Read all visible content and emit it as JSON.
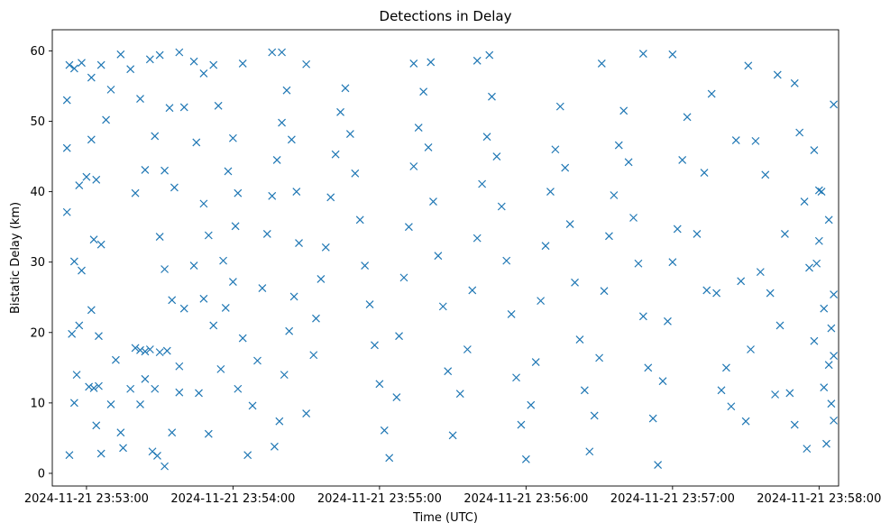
{
  "chart_data": {
    "type": "scatter",
    "title": "Detections in Delay",
    "xlabel": "Time (UTC)",
    "ylabel": "Bistatic Delay (km)",
    "x_ticks": [
      "2024-11-21 23:53:00",
      "2024-11-21 23:54:00",
      "2024-11-21 23:55:00",
      "2024-11-21 23:56:00",
      "2024-11-21 23:57:00",
      "2024-11-21 23:58:00"
    ],
    "y_ticks": [
      "0",
      "10",
      "20",
      "30",
      "40",
      "50",
      "60"
    ],
    "xlim": [
      "2024-11-21 23:52:46",
      "2024-11-21 23:58:08"
    ],
    "ylim": [
      -1.8,
      63.0
    ],
    "marker": "x",
    "color": "#1f77b4",
    "grid": false,
    "series": [
      {
        "points": [
          [
            "2024-11-21 23:52:53",
            58.0
          ],
          [
            "2024-11-21 23:52:55",
            57.5
          ],
          [
            "2024-11-21 23:52:58",
            58.3
          ],
          [
            "2024-11-21 23:53:02",
            56.2
          ],
          [
            "2024-11-21 23:53:06",
            58.0
          ],
          [
            "2024-11-21 23:53:10",
            54.5
          ],
          [
            "2024-11-21 23:53:14",
            59.5
          ],
          [
            "2024-11-21 23:53:18",
            57.4
          ],
          [
            "2024-11-21 23:53:22",
            53.2
          ],
          [
            "2024-11-21 23:53:26",
            58.8
          ],
          [
            "2024-11-21 23:53:30",
            59.4
          ],
          [
            "2024-11-21 23:53:34",
            51.9
          ],
          [
            "2024-11-21 23:53:38",
            59.8
          ],
          [
            "2024-11-21 23:53:44",
            58.5
          ],
          [
            "2024-11-21 23:53:48",
            56.8
          ],
          [
            "2024-11-21 23:53:52",
            58.0
          ],
          [
            "2024-11-21 23:54:04",
            58.2
          ],
          [
            "2024-11-21 23:54:16",
            59.8
          ],
          [
            "2024-11-21 23:54:20",
            59.8
          ],
          [
            "2024-11-21 23:54:30",
            58.1
          ],
          [
            "2024-11-21 23:55:14",
            58.2
          ],
          [
            "2024-11-21 23:55:21",
            58.4
          ],
          [
            "2024-11-21 23:55:45",
            59.4
          ],
          [
            "2024-11-21 23:55:40",
            58.6
          ],
          [
            "2024-11-21 23:56:31",
            58.2
          ],
          [
            "2024-11-21 23:56:48",
            59.6
          ],
          [
            "2024-11-21 23:57:00",
            59.5
          ],
          [
            "2024-11-21 23:57:31",
            57.9
          ],
          [
            "2024-11-21 23:57:43",
            56.6
          ],
          [
            "2024-11-21 23:57:50",
            55.4
          ],
          [
            "2024-11-21 23:52:52",
            53.0
          ],
          [
            "2024-11-21 23:52:52",
            46.2
          ],
          [
            "2024-11-21 23:52:52",
            37.1
          ],
          [
            "2024-11-21 23:52:55",
            30.1
          ],
          [
            "2024-11-21 23:52:58",
            28.8
          ],
          [
            "2024-11-21 23:52:54",
            19.8
          ],
          [
            "2024-11-21 23:52:56",
            14.0
          ],
          [
            "2024-11-21 23:52:55",
            10.0
          ],
          [
            "2024-11-21 23:52:53",
            2.6
          ],
          [
            "2024-11-21 23:52:57",
            21.0
          ],
          [
            "2024-11-21 23:52:57",
            40.9
          ],
          [
            "2024-11-21 23:53:00",
            42.1
          ],
          [
            "2024-11-21 23:53:02",
            47.4
          ],
          [
            "2024-11-21 23:53:04",
            41.7
          ],
          [
            "2024-11-21 23:53:08",
            50.2
          ],
          [
            "2024-11-21 23:53:03",
            33.2
          ],
          [
            "2024-11-21 23:53:06",
            32.5
          ],
          [
            "2024-11-21 23:53:02",
            23.2
          ],
          [
            "2024-11-21 23:53:05",
            19.5
          ],
          [
            "2024-11-21 23:53:01",
            12.3
          ],
          [
            "2024-11-21 23:53:03",
            12.1
          ],
          [
            "2024-11-21 23:53:05",
            12.4
          ],
          [
            "2024-11-21 23:53:04",
            6.8
          ],
          [
            "2024-11-21 23:53:06",
            2.8
          ],
          [
            "2024-11-21 23:53:10",
            9.8
          ],
          [
            "2024-11-21 23:53:12",
            16.1
          ],
          [
            "2024-11-21 23:53:14",
            5.8
          ],
          [
            "2024-11-21 23:53:15",
            3.6
          ],
          [
            "2024-11-21 23:53:18",
            12.0
          ],
          [
            "2024-11-21 23:53:20",
            17.8
          ],
          [
            "2024-11-21 23:53:22",
            17.5
          ],
          [
            "2024-11-21 23:53:24",
            17.3
          ],
          [
            "2024-11-21 23:53:26",
            17.6
          ],
          [
            "2024-11-21 23:53:30",
            17.2
          ],
          [
            "2024-11-21 23:53:33",
            17.4
          ],
          [
            "2024-11-21 23:53:28",
            12.0
          ],
          [
            "2024-11-21 23:53:24",
            13.4
          ],
          [
            "2024-11-21 23:53:22",
            9.8
          ],
          [
            "2024-11-21 23:53:27",
            3.1
          ],
          [
            "2024-11-21 23:53:29",
            2.5
          ],
          [
            "2024-11-21 23:53:32",
            1.0
          ],
          [
            "2024-11-21 23:53:35",
            5.8
          ],
          [
            "2024-11-21 23:53:38",
            11.5
          ],
          [
            "2024-11-21 23:53:38",
            15.2
          ],
          [
            "2024-11-21 23:53:40",
            23.4
          ],
          [
            "2024-11-21 23:53:35",
            24.6
          ],
          [
            "2024-11-21 23:53:32",
            29.0
          ],
          [
            "2024-11-21 23:53:30",
            33.6
          ],
          [
            "2024-11-21 23:53:20",
            39.8
          ],
          [
            "2024-11-21 23:53:24",
            43.1
          ],
          [
            "2024-11-21 23:53:28",
            47.9
          ],
          [
            "2024-11-21 23:53:32",
            43.0
          ],
          [
            "2024-11-21 23:53:36",
            40.6
          ],
          [
            "2024-11-21 23:53:40",
            52.0
          ],
          [
            "2024-11-21 23:53:45",
            47.0
          ],
          [
            "2024-11-21 23:53:48",
            38.3
          ],
          [
            "2024-11-21 23:53:50",
            33.8
          ],
          [
            "2024-11-21 23:53:44",
            29.5
          ],
          [
            "2024-11-21 23:53:48",
            24.8
          ],
          [
            "2024-11-21 23:53:52",
            21.0
          ],
          [
            "2024-11-21 23:53:46",
            11.4
          ],
          [
            "2024-11-21 23:53:50",
            5.6
          ],
          [
            "2024-11-21 23:53:55",
            14.8
          ],
          [
            "2024-11-21 23:53:57",
            23.5
          ],
          [
            "2024-11-21 23:53:56",
            30.2
          ],
          [
            "2024-11-21 23:53:58",
            42.9
          ],
          [
            "2024-11-21 23:53:54",
            52.2
          ],
          [
            "2024-11-21 23:54:00",
            47.6
          ],
          [
            "2024-11-21 23:54:02",
            39.8
          ],
          [
            "2024-11-21 23:54:01",
            35.1
          ],
          [
            "2024-11-21 23:54:00",
            27.2
          ],
          [
            "2024-11-21 23:54:04",
            19.2
          ],
          [
            "2024-11-21 23:54:02",
            12.0
          ],
          [
            "2024-11-21 23:54:06",
            2.6
          ],
          [
            "2024-11-21 23:54:08",
            9.6
          ],
          [
            "2024-11-21 23:54:10",
            16.0
          ],
          [
            "2024-11-21 23:54:12",
            26.3
          ],
          [
            "2024-11-21 23:54:14",
            34.0
          ],
          [
            "2024-11-21 23:54:16",
            39.4
          ],
          [
            "2024-11-21 23:54:18",
            44.5
          ],
          [
            "2024-11-21 23:54:20",
            49.8
          ],
          [
            "2024-11-21 23:54:22",
            54.4
          ],
          [
            "2024-11-21 23:54:24",
            47.4
          ],
          [
            "2024-11-21 23:54:26",
            40.0
          ],
          [
            "2024-11-21 23:54:27",
            32.7
          ],
          [
            "2024-11-21 23:54:25",
            25.1
          ],
          [
            "2024-11-21 23:54:23",
            20.2
          ],
          [
            "2024-11-21 23:54:21",
            14.0
          ],
          [
            "2024-11-21 23:54:19",
            7.4
          ],
          [
            "2024-11-21 23:54:17",
            3.8
          ],
          [
            "2024-11-21 23:54:30",
            8.5
          ],
          [
            "2024-11-21 23:54:33",
            16.8
          ],
          [
            "2024-11-21 23:54:34",
            22.0
          ],
          [
            "2024-11-21 23:54:36",
            27.6
          ],
          [
            "2024-11-21 23:54:38",
            32.1
          ],
          [
            "2024-11-21 23:54:40",
            39.2
          ],
          [
            "2024-11-21 23:54:42",
            45.3
          ],
          [
            "2024-11-21 23:54:44",
            51.3
          ],
          [
            "2024-11-21 23:54:46",
            54.7
          ],
          [
            "2024-11-21 23:54:48",
            48.2
          ],
          [
            "2024-11-21 23:54:50",
            42.6
          ],
          [
            "2024-11-21 23:54:52",
            36.0
          ],
          [
            "2024-11-21 23:54:54",
            29.5
          ],
          [
            "2024-11-21 23:54:56",
            24.0
          ],
          [
            "2024-11-21 23:54:58",
            18.2
          ],
          [
            "2024-11-21 23:55:00",
            12.7
          ],
          [
            "2024-11-21 23:55:02",
            6.1
          ],
          [
            "2024-11-21 23:55:04",
            2.2
          ],
          [
            "2024-11-21 23:55:07",
            10.8
          ],
          [
            "2024-11-21 23:55:08",
            19.5
          ],
          [
            "2024-11-21 23:55:10",
            27.8
          ],
          [
            "2024-11-21 23:55:12",
            35.0
          ],
          [
            "2024-11-21 23:55:14",
            43.6
          ],
          [
            "2024-11-21 23:55:16",
            49.1
          ],
          [
            "2024-11-21 23:55:18",
            54.2
          ],
          [
            "2024-11-21 23:55:20",
            46.3
          ],
          [
            "2024-11-21 23:55:22",
            38.6
          ],
          [
            "2024-11-21 23:55:24",
            30.9
          ],
          [
            "2024-11-21 23:55:26",
            23.7
          ],
          [
            "2024-11-21 23:55:28",
            14.5
          ],
          [
            "2024-11-21 23:55:30",
            5.4
          ],
          [
            "2024-11-21 23:55:33",
            11.3
          ],
          [
            "2024-11-21 23:55:36",
            17.6
          ],
          [
            "2024-11-21 23:55:38",
            26.0
          ],
          [
            "2024-11-21 23:55:40",
            33.4
          ],
          [
            "2024-11-21 23:55:42",
            41.1
          ],
          [
            "2024-11-21 23:55:44",
            47.8
          ],
          [
            "2024-11-21 23:55:46",
            53.5
          ],
          [
            "2024-11-21 23:55:48",
            45.0
          ],
          [
            "2024-11-21 23:55:50",
            37.9
          ],
          [
            "2024-11-21 23:55:52",
            30.2
          ],
          [
            "2024-11-21 23:55:54",
            22.6
          ],
          [
            "2024-11-21 23:55:56",
            13.6
          ],
          [
            "2024-11-21 23:55:58",
            6.9
          ],
          [
            "2024-11-21 23:56:00",
            2.0
          ],
          [
            "2024-11-21 23:56:02",
            9.7
          ],
          [
            "2024-11-21 23:56:04",
            15.8
          ],
          [
            "2024-11-21 23:56:06",
            24.5
          ],
          [
            "2024-11-21 23:56:08",
            32.3
          ],
          [
            "2024-11-21 23:56:10",
            40.0
          ],
          [
            "2024-11-21 23:56:12",
            46.0
          ],
          [
            "2024-11-21 23:56:14",
            52.1
          ],
          [
            "2024-11-21 23:56:16",
            43.4
          ],
          [
            "2024-11-21 23:56:18",
            35.4
          ],
          [
            "2024-11-21 23:56:20",
            27.1
          ],
          [
            "2024-11-21 23:56:22",
            19.0
          ],
          [
            "2024-11-21 23:56:24",
            11.8
          ],
          [
            "2024-11-21 23:56:26",
            3.1
          ],
          [
            "2024-11-21 23:56:28",
            8.2
          ],
          [
            "2024-11-21 23:56:30",
            16.4
          ],
          [
            "2024-11-21 23:56:32",
            25.9
          ],
          [
            "2024-11-21 23:56:34",
            33.7
          ],
          [
            "2024-11-21 23:56:36",
            39.5
          ],
          [
            "2024-11-21 23:56:38",
            46.6
          ],
          [
            "2024-11-21 23:56:40",
            51.5
          ],
          [
            "2024-11-21 23:56:42",
            44.2
          ],
          [
            "2024-11-21 23:56:44",
            36.3
          ],
          [
            "2024-11-21 23:56:46",
            29.8
          ],
          [
            "2024-11-21 23:56:48",
            22.3
          ],
          [
            "2024-11-21 23:56:50",
            15.0
          ],
          [
            "2024-11-21 23:56:52",
            7.8
          ],
          [
            "2024-11-21 23:56:54",
            1.2
          ],
          [
            "2024-11-21 23:56:56",
            13.1
          ],
          [
            "2024-11-21 23:56:58",
            21.6
          ],
          [
            "2024-11-21 23:57:00",
            30.0
          ],
          [
            "2024-11-21 23:57:02",
            34.7
          ],
          [
            "2024-11-21 23:57:04",
            44.5
          ],
          [
            "2024-11-21 23:57:06",
            50.6
          ],
          [
            "2024-11-21 23:57:10",
            34.0
          ],
          [
            "2024-11-21 23:57:13",
            42.7
          ],
          [
            "2024-11-21 23:57:14",
            26.0
          ],
          [
            "2024-11-21 23:57:16",
            53.9
          ],
          [
            "2024-11-21 23:57:18",
            25.6
          ],
          [
            "2024-11-21 23:57:20",
            11.8
          ],
          [
            "2024-11-21 23:57:22",
            15.0
          ],
          [
            "2024-11-21 23:57:24",
            9.5
          ],
          [
            "2024-11-21 23:57:26",
            47.3
          ],
          [
            "2024-11-21 23:57:28",
            27.3
          ],
          [
            "2024-11-21 23:57:30",
            7.4
          ],
          [
            "2024-11-21 23:57:32",
            17.6
          ],
          [
            "2024-11-21 23:57:34",
            47.2
          ],
          [
            "2024-11-21 23:57:36",
            28.6
          ],
          [
            "2024-11-21 23:57:38",
            42.4
          ],
          [
            "2024-11-21 23:57:40",
            25.6
          ],
          [
            "2024-11-21 23:57:42",
            11.2
          ],
          [
            "2024-11-21 23:57:44",
            21.0
          ],
          [
            "2024-11-21 23:57:46",
            34.0
          ],
          [
            "2024-11-21 23:57:48",
            11.4
          ],
          [
            "2024-11-21 23:57:50",
            6.9
          ],
          [
            "2024-11-21 23:57:52",
            48.4
          ],
          [
            "2024-11-21 23:57:54",
            38.6
          ],
          [
            "2024-11-21 23:57:56",
            29.2
          ],
          [
            "2024-11-21 23:57:58",
            18.8
          ],
          [
            "2024-11-21 23:57:58",
            45.9
          ],
          [
            "2024-11-21 23:58:00",
            40.2
          ],
          [
            "2024-11-21 23:58:00",
            33.0
          ],
          [
            "2024-11-21 23:58:02",
            23.4
          ],
          [
            "2024-11-21 23:58:02",
            12.2
          ],
          [
            "2024-11-21 23:58:03",
            4.2
          ],
          [
            "2024-11-21 23:58:04",
            36.0
          ],
          [
            "2024-11-21 23:58:04",
            15.4
          ],
          [
            "2024-11-21 23:58:05",
            20.6
          ],
          [
            "2024-11-21 23:58:05",
            9.9
          ],
          [
            "2024-11-21 23:58:06",
            52.4
          ],
          [
            "2024-11-21 23:58:06",
            25.4
          ],
          [
            "2024-11-21 23:58:06",
            16.7
          ],
          [
            "2024-11-21 23:58:06",
            7.5
          ],
          [
            "2024-11-21 23:58:01",
            40.0
          ],
          [
            "2024-11-21 23:57:59",
            29.8
          ],
          [
            "2024-11-21 23:57:55",
            3.5
          ]
        ]
      }
    ]
  }
}
